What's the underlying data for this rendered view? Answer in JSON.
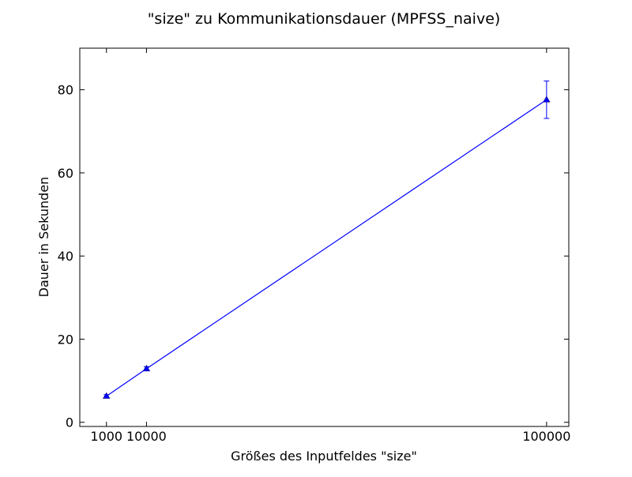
{
  "chart_data": {
    "type": "line",
    "title": "\"size\" zu Kommunikationsdauer (MPFSS_naive)",
    "xlabel": "Größes des Inputfeldes \"size\"",
    "ylabel": "Dauer in Sekunden",
    "xlim": [
      -5000,
      105000
    ],
    "ylim": [
      -1,
      90
    ],
    "x_ticks": [
      1000,
      10000,
      100000
    ],
    "x_tick_labels": [
      "1000",
      "10000",
      "100000"
    ],
    "y_ticks": [
      0,
      20,
      40,
      60,
      80
    ],
    "y_tick_labels": [
      "0",
      "20",
      "40",
      "60",
      "80"
    ],
    "grid": false,
    "series": [
      {
        "color": "#0000ff",
        "marker": "triangle-up",
        "x": [
          1000,
          10000,
          100000
        ],
        "values": [
          6.3,
          12.9,
          77.6
        ],
        "error": [
          0.35,
          0.5,
          4.5
        ]
      }
    ]
  }
}
